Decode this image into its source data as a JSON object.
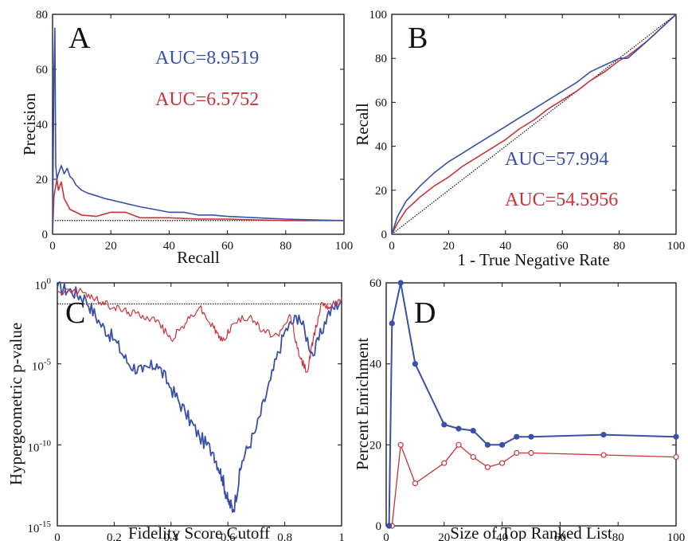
{
  "colors": {
    "blue": "#3a4fa8",
    "red": "#c8333b",
    "black": "#111111"
  },
  "chart_data": [
    {
      "panel": "A",
      "type": "line",
      "xlabel": "Recall",
      "ylabel": "Precision",
      "xlim": [
        0,
        100
      ],
      "ylim": [
        0,
        80
      ],
      "xticks": [
        0,
        20,
        40,
        60,
        80,
        100
      ],
      "yticks": [
        0,
        20,
        40,
        60,
        80
      ],
      "annotations": [
        {
          "text": "AUC=8.9519",
          "color": "blue"
        },
        {
          "text": "AUC=6.5752",
          "color": "red"
        }
      ],
      "baseline": {
        "y": 5,
        "style": "dotted"
      },
      "series": [
        {
          "color": "blue",
          "points": [
            [
              0,
              0
            ],
            [
              0.5,
              60
            ],
            [
              0.8,
              75
            ],
            [
              1.1,
              25
            ],
            [
              1.5,
              20
            ],
            [
              2,
              22
            ],
            [
              3,
              25
            ],
            [
              4,
              22
            ],
            [
              5,
              24
            ],
            [
              6,
              21
            ],
            [
              7,
              20
            ],
            [
              8,
              18
            ],
            [
              10,
              16
            ],
            [
              12,
              15
            ],
            [
              15,
              14
            ],
            [
              18,
              13
            ],
            [
              22,
              12
            ],
            [
              26,
              11
            ],
            [
              30,
              10
            ],
            [
              35,
              9
            ],
            [
              40,
              8
            ],
            [
              45,
              8
            ],
            [
              50,
              7
            ],
            [
              55,
              7
            ],
            [
              60,
              6.5
            ],
            [
              70,
              6
            ],
            [
              80,
              5.5
            ],
            [
              90,
              5.2
            ],
            [
              100,
              5
            ]
          ]
        },
        {
          "color": "red",
          "points": [
            [
              0,
              0
            ],
            [
              0.5,
              14
            ],
            [
              1,
              17
            ],
            [
              1.5,
              20
            ],
            [
              2,
              16
            ],
            [
              3,
              19
            ],
            [
              4,
              13
            ],
            [
              5,
              11
            ],
            [
              6,
              9
            ],
            [
              8,
              8
            ],
            [
              10,
              7
            ],
            [
              15,
              6.5
            ],
            [
              20,
              8
            ],
            [
              25,
              8
            ],
            [
              30,
              6
            ],
            [
              40,
              6
            ],
            [
              50,
              5.5
            ],
            [
              60,
              5.5
            ],
            [
              70,
              5.2
            ],
            [
              80,
              5
            ],
            [
              90,
              5
            ],
            [
              100,
              5
            ]
          ]
        }
      ]
    },
    {
      "panel": "B",
      "type": "line",
      "xlabel": "1 - True Negative Rate",
      "ylabel": "Recall",
      "xlim": [
        0,
        100
      ],
      "ylim": [
        0,
        100
      ],
      "xticks": [
        0,
        20,
        40,
        60,
        80,
        100
      ],
      "yticks": [
        0,
        20,
        40,
        60,
        80,
        100
      ],
      "annotations": [
        {
          "text": "AUC=57.994",
          "color": "blue"
        },
        {
          "text": "AUC=54.5956",
          "color": "red"
        }
      ],
      "diagonal": true,
      "series": [
        {
          "color": "blue",
          "points": [
            [
              0,
              0
            ],
            [
              2,
              8
            ],
            [
              5,
              15
            ],
            [
              10,
              22
            ],
            [
              15,
              28
            ],
            [
              20,
              33
            ],
            [
              25,
              37
            ],
            [
              30,
              41
            ],
            [
              35,
              45
            ],
            [
              40,
              49
            ],
            [
              45,
              53
            ],
            [
              50,
              57
            ],
            [
              55,
              61
            ],
            [
              60,
              65
            ],
            [
              65,
              69
            ],
            [
              70,
              74
            ],
            [
              75,
              77
            ],
            [
              80,
              80
            ],
            [
              83,
              80
            ],
            [
              90,
              88
            ],
            [
              100,
              100
            ]
          ]
        },
        {
          "color": "red",
          "points": [
            [
              0,
              0
            ],
            [
              2,
              5
            ],
            [
              5,
              11
            ],
            [
              10,
              17
            ],
            [
              15,
              22
            ],
            [
              20,
              26
            ],
            [
              25,
              31
            ],
            [
              30,
              35
            ],
            [
              35,
              39
            ],
            [
              40,
              43
            ],
            [
              45,
              48
            ],
            [
              50,
              52
            ],
            [
              55,
              57
            ],
            [
              60,
              61
            ],
            [
              65,
              65
            ],
            [
              70,
              70
            ],
            [
              75,
              74
            ],
            [
              80,
              79
            ],
            [
              83,
              81
            ],
            [
              90,
              88
            ],
            [
              100,
              100
            ]
          ]
        }
      ]
    },
    {
      "panel": "C",
      "type": "line",
      "xlabel": "Fidelity Score Cutoff",
      "ylabel": "Hypergeometric p-value",
      "xlim": [
        0,
        1
      ],
      "ylim_log10": [
        -15,
        0
      ],
      "yscale": "log",
      "xticks": [
        "0",
        "0.2",
        "0.4",
        "0.6",
        "0.8",
        "1"
      ],
      "yticks": [
        {
          "base": "10",
          "exp": "0",
          "value": 0
        },
        {
          "base": "10",
          "exp": "-5",
          "value": -5
        },
        {
          "base": "10",
          "exp": "-10",
          "value": -10
        },
        {
          "base": "10",
          "exp": "-15",
          "value": -15
        }
      ],
      "baseline_log10": -1.3,
      "series": [
        {
          "color": "blue",
          "points_log10": [
            [
              0,
              -0.3
            ],
            [
              0.05,
              -0.5
            ],
            [
              0.1,
              -1.0
            ],
            [
              0.15,
              -2.5
            ],
            [
              0.2,
              -3.5
            ],
            [
              0.25,
              -5.0
            ],
            [
              0.3,
              -5.5
            ],
            [
              0.35,
              -5.0
            ],
            [
              0.4,
              -6.5
            ],
            [
              0.45,
              -8.0
            ],
            [
              0.5,
              -9.5
            ],
            [
              0.55,
              -10.5
            ],
            [
              0.58,
              -12.0
            ],
            [
              0.6,
              -13.5
            ],
            [
              0.62,
              -14.0
            ],
            [
              0.65,
              -11.0
            ],
            [
              0.7,
              -9.0
            ],
            [
              0.75,
              -6.0
            ],
            [
              0.8,
              -3.0
            ],
            [
              0.85,
              -2.0
            ],
            [
              0.9,
              -4.5
            ],
            [
              0.95,
              -2.0
            ],
            [
              1.0,
              -1.0
            ]
          ]
        },
        {
          "color": "red",
          "points_log10": [
            [
              0,
              -0.5
            ],
            [
              0.1,
              -0.6
            ],
            [
              0.15,
              -1.2
            ],
            [
              0.2,
              -1.5
            ],
            [
              0.25,
              -1.8
            ],
            [
              0.3,
              -2.0
            ],
            [
              0.35,
              -2.3
            ],
            [
              0.4,
              -3.5
            ],
            [
              0.45,
              -2.5
            ],
            [
              0.5,
              -1.5
            ],
            [
              0.55,
              -2.8
            ],
            [
              0.58,
              -3.6
            ],
            [
              0.62,
              -2.5
            ],
            [
              0.68,
              -2.0
            ],
            [
              0.72,
              -3.0
            ],
            [
              0.78,
              -3.3
            ],
            [
              0.82,
              -2.0
            ],
            [
              0.85,
              -4.5
            ],
            [
              0.88,
              -5.5
            ],
            [
              0.9,
              -3.5
            ],
            [
              0.93,
              -1.2
            ],
            [
              0.96,
              -1.5
            ],
            [
              1.0,
              -0.9
            ]
          ]
        }
      ]
    },
    {
      "panel": "D",
      "type": "line",
      "xlabel": "Size of Top Ranked List",
      "ylabel": "Percent Enrichment",
      "xlim": [
        0,
        100
      ],
      "ylim": [
        0,
        60
      ],
      "xticks": [
        0,
        20,
        40,
        60,
        80,
        100
      ],
      "yticks": [
        0,
        20,
        40,
        60
      ],
      "markers": true,
      "series": [
        {
          "color": "blue",
          "x": [
            1,
            2,
            5,
            10,
            20,
            25,
            30,
            35,
            40,
            45,
            50,
            75,
            100
          ],
          "y": [
            0,
            50,
            60,
            40,
            25,
            24,
            23.5,
            20,
            20,
            22,
            22,
            22.5,
            22
          ]
        },
        {
          "color": "red",
          "x": [
            1,
            2,
            5,
            10,
            20,
            25,
            30,
            35,
            40,
            45,
            50,
            75,
            100
          ],
          "y": [
            0,
            0,
            20,
            10.5,
            15.5,
            20,
            17,
            14.5,
            15.5,
            18,
            18,
            17.5,
            17
          ]
        }
      ]
    }
  ]
}
